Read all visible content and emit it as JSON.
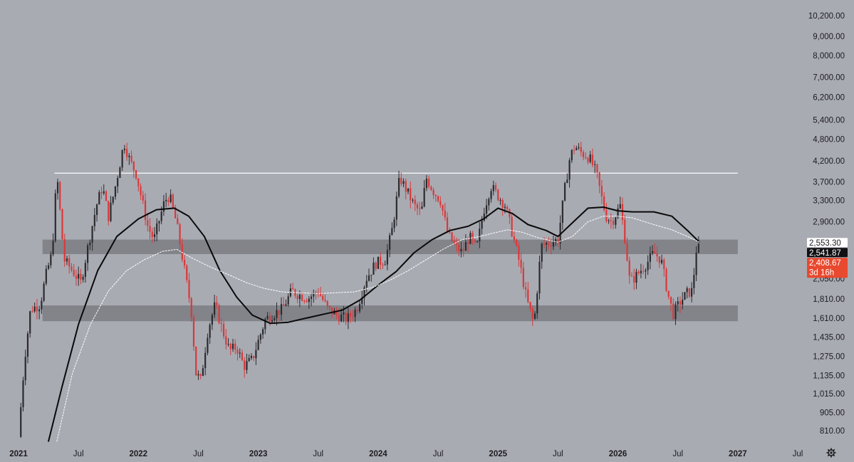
{
  "chart_data": {
    "type": "candlestick",
    "title": "",
    "scale": "log",
    "ylim": [
      760,
      10600
    ],
    "y_ticks": [
      10200,
      9000,
      8000,
      7000,
      6200,
      5400,
      4800,
      4200,
      3700,
      3300,
      2900,
      2050,
      1810,
      1610,
      1435,
      1275,
      1135,
      1015,
      905,
      810
    ],
    "y_tick_labels": [
      "10,200.00",
      "9,000.00",
      "8,000.00",
      "7,000.00",
      "6,200.00",
      "5,400.00",
      "4,800.00",
      "4,200.00",
      "3,700.00",
      "3,300.00",
      "2,900.00",
      "2,050.00",
      "1,810.00",
      "1,610.00",
      "1,435.00",
      "1,275.00",
      "1,135.00",
      "1,015.00",
      "905.00",
      "810.00"
    ],
    "x_ticks": [
      {
        "label": "2021",
        "t": 2021.0,
        "bold": true
      },
      {
        "label": "Jul",
        "t": 2021.5,
        "bold": false
      },
      {
        "label": "2022",
        "t": 2022.0,
        "bold": true
      },
      {
        "label": "Jul",
        "t": 2022.5,
        "bold": false
      },
      {
        "label": "2023",
        "t": 2023.0,
        "bold": true
      },
      {
        "label": "Jul",
        "t": 2023.5,
        "bold": false
      },
      {
        "label": "2024",
        "t": 2024.0,
        "bold": true
      },
      {
        "label": "Jul",
        "t": 2024.5,
        "bold": false
      },
      {
        "label": "2025",
        "t": 2025.0,
        "bold": true
      },
      {
        "label": "Jul",
        "t": 2025.5,
        "bold": false
      },
      {
        "label": "2026",
        "t": 2026.0,
        "bold": true
      },
      {
        "label": "Jul",
        "t": 2026.5,
        "bold": false
      },
      {
        "label": "2027",
        "t": 2027.0,
        "bold": true
      },
      {
        "label": "Jul",
        "t": 2027.5,
        "bold": false
      }
    ],
    "xlim": [
      2021.0,
      2027.5
    ],
    "resistance_line": {
      "value": 3900,
      "t_start": 2021.3,
      "t_end": 2027.0
    },
    "zones": [
      {
        "low": 2380,
        "high": 2600,
        "t_start": 2021.2,
        "t_end": 2027.0
      },
      {
        "low": 1580,
        "high": 1740,
        "t_start": 2021.2,
        "t_end": 2027.0
      }
    ],
    "series": [
      {
        "kind": "candles",
        "color_up": "#2b2b2e",
        "color_down": "#d8393a",
        "anchors": [
          [
            2021.0,
            780
          ],
          [
            2021.05,
            1250
          ],
          [
            2021.1,
            1700
          ],
          [
            2021.18,
            1750
          ],
          [
            2021.23,
            2100
          ],
          [
            2021.28,
            2400
          ],
          [
            2021.32,
            3900
          ],
          [
            2021.38,
            2300
          ],
          [
            2021.45,
            2150
          ],
          [
            2021.52,
            2000
          ],
          [
            2021.58,
            2500
          ],
          [
            2021.65,
            3200
          ],
          [
            2021.7,
            3600
          ],
          [
            2021.75,
            3000
          ],
          [
            2021.8,
            3500
          ],
          [
            2021.85,
            4200
          ],
          [
            2021.88,
            4700
          ],
          [
            2021.93,
            4200
          ],
          [
            2021.98,
            3900
          ],
          [
            2022.03,
            3300
          ],
          [
            2022.08,
            2800
          ],
          [
            2022.13,
            2600
          ],
          [
            2022.17,
            2900
          ],
          [
            2022.22,
            3300
          ],
          [
            2022.26,
            3400
          ],
          [
            2022.32,
            2850
          ],
          [
            2022.38,
            2200
          ],
          [
            2022.44,
            1700
          ],
          [
            2022.48,
            1150
          ],
          [
            2022.52,
            1100
          ],
          [
            2022.58,
            1500
          ],
          [
            2022.64,
            1750
          ],
          [
            2022.7,
            1500
          ],
          [
            2022.76,
            1320
          ],
          [
            2022.82,
            1350
          ],
          [
            2022.88,
            1200
          ],
          [
            2022.95,
            1250
          ],
          [
            2023.0,
            1400
          ],
          [
            2023.06,
            1600
          ],
          [
            2023.12,
            1650
          ],
          [
            2023.2,
            1700
          ],
          [
            2023.28,
            1900
          ],
          [
            2023.35,
            1850
          ],
          [
            2023.42,
            1820
          ],
          [
            2023.5,
            1900
          ],
          [
            2023.58,
            1700
          ],
          [
            2023.66,
            1640
          ],
          [
            2023.74,
            1600
          ],
          [
            2023.82,
            1700
          ],
          [
            2023.9,
            2050
          ],
          [
            2023.98,
            2250
          ],
          [
            2024.06,
            2300
          ],
          [
            2024.12,
            2800
          ],
          [
            2024.18,
            3800
          ],
          [
            2024.24,
            3500
          ],
          [
            2024.3,
            3200
          ],
          [
            2024.36,
            3050
          ],
          [
            2024.4,
            3800
          ],
          [
            2024.46,
            3500
          ],
          [
            2024.52,
            3300
          ],
          [
            2024.58,
            2700
          ],
          [
            2024.64,
            2500
          ],
          [
            2024.7,
            2400
          ],
          [
            2024.76,
            2650
          ],
          [
            2024.82,
            2450
          ],
          [
            2024.88,
            3100
          ],
          [
            2024.94,
            3600
          ],
          [
            2025.0,
            3400
          ],
          [
            2025.06,
            3200
          ],
          [
            2025.12,
            2700
          ],
          [
            2025.18,
            2250
          ],
          [
            2025.24,
            1800
          ],
          [
            2025.3,
            1550
          ],
          [
            2025.36,
            2500
          ],
          [
            2025.42,
            2550
          ],
          [
            2025.5,
            2600
          ],
          [
            2025.56,
            3600
          ],
          [
            2025.6,
            4300
          ],
          [
            2025.64,
            4600
          ],
          [
            2025.7,
            4400
          ],
          [
            2025.76,
            4300
          ],
          [
            2025.82,
            3900
          ],
          [
            2025.86,
            3400
          ],
          [
            2025.9,
            3000
          ],
          [
            2025.95,
            2900
          ],
          [
            2026.02,
            3200
          ],
          [
            2026.06,
            2600
          ],
          [
            2026.1,
            2000
          ],
          [
            2026.16,
            2100
          ],
          [
            2026.24,
            2250
          ],
          [
            2026.3,
            2400
          ],
          [
            2026.36,
            2300
          ],
          [
            2026.42,
            1850
          ],
          [
            2026.46,
            1650
          ],
          [
            2026.52,
            1780
          ],
          [
            2026.58,
            1880
          ],
          [
            2026.62,
            1900
          ],
          [
            2026.66,
            2555
          ],
          [
            2026.68,
            2408.67
          ]
        ]
      },
      {
        "kind": "ma",
        "style": "solid",
        "color": "#0a0a0a",
        "points": [
          [
            2021.25,
            760
          ],
          [
            2021.36,
            1050
          ],
          [
            2021.5,
            1550
          ],
          [
            2021.66,
            2150
          ],
          [
            2021.82,
            2650
          ],
          [
            2022.0,
            2950
          ],
          [
            2022.15,
            3120
          ],
          [
            2022.3,
            3150
          ],
          [
            2022.42,
            3000
          ],
          [
            2022.55,
            2650
          ],
          [
            2022.68,
            2150
          ],
          [
            2022.82,
            1830
          ],
          [
            2022.95,
            1640
          ],
          [
            2023.1,
            1560
          ],
          [
            2023.25,
            1570
          ],
          [
            2023.4,
            1610
          ],
          [
            2023.55,
            1650
          ],
          [
            2023.7,
            1690
          ],
          [
            2023.85,
            1800
          ],
          [
            2024.0,
            1970
          ],
          [
            2024.15,
            2140
          ],
          [
            2024.3,
            2400
          ],
          [
            2024.45,
            2600
          ],
          [
            2024.6,
            2750
          ],
          [
            2024.75,
            2820
          ],
          [
            2024.88,
            2950
          ],
          [
            2025.0,
            3150
          ],
          [
            2025.12,
            3050
          ],
          [
            2025.25,
            2850
          ],
          [
            2025.4,
            2750
          ],
          [
            2025.5,
            2650
          ],
          [
            2025.62,
            2880
          ],
          [
            2025.75,
            3150
          ],
          [
            2025.88,
            3170
          ],
          [
            2026.0,
            3100
          ],
          [
            2026.12,
            3080
          ],
          [
            2026.3,
            3080
          ],
          [
            2026.45,
            3000
          ],
          [
            2026.58,
            2750
          ],
          [
            2026.68,
            2560
          ]
        ]
      },
      {
        "kind": "ma",
        "style": "dotted",
        "color": "#ffffff",
        "points": [
          [
            2021.32,
            760
          ],
          [
            2021.45,
            1150
          ],
          [
            2021.6,
            1550
          ],
          [
            2021.75,
            1900
          ],
          [
            2021.9,
            2150
          ],
          [
            2022.05,
            2300
          ],
          [
            2022.2,
            2420
          ],
          [
            2022.32,
            2450
          ],
          [
            2022.45,
            2320
          ],
          [
            2022.6,
            2200
          ],
          [
            2022.75,
            2100
          ],
          [
            2022.9,
            2000
          ],
          [
            2023.05,
            1930
          ],
          [
            2023.2,
            1890
          ],
          [
            2023.35,
            1880
          ],
          [
            2023.5,
            1870
          ],
          [
            2023.65,
            1880
          ],
          [
            2023.8,
            1890
          ],
          [
            2023.95,
            1940
          ],
          [
            2024.1,
            2030
          ],
          [
            2024.25,
            2150
          ],
          [
            2024.4,
            2300
          ],
          [
            2024.55,
            2460
          ],
          [
            2024.7,
            2600
          ],
          [
            2024.85,
            2650
          ],
          [
            2024.95,
            2700
          ],
          [
            2025.08,
            2760
          ],
          [
            2025.2,
            2720
          ],
          [
            2025.35,
            2620
          ],
          [
            2025.5,
            2560
          ],
          [
            2025.62,
            2650
          ],
          [
            2025.75,
            2900
          ],
          [
            2025.88,
            3000
          ],
          [
            2026.0,
            3000
          ],
          [
            2026.12,
            2970
          ],
          [
            2026.3,
            2850
          ],
          [
            2026.45,
            2760
          ],
          [
            2026.58,
            2650
          ],
          [
            2026.68,
            2560
          ]
        ]
      }
    ],
    "price_labels": [
      {
        "value": 2553.3,
        "text": "2,553.30",
        "bg": "#ffffff",
        "fg": "#1c1c1f"
      },
      {
        "value": 2541.87,
        "text": "2,541.87",
        "bg": "#101012",
        "fg": "#ffffff"
      },
      {
        "value": 2408.67,
        "text": "2,408.67",
        "sub": "3d 16h",
        "bg": "#e8492f",
        "fg": "#ffffff"
      }
    ],
    "colors": {
      "background": "#a9abb3",
      "resistance": "#ffffff",
      "zone": "#7b7c83"
    }
  },
  "settings_icon": "gear-icon"
}
